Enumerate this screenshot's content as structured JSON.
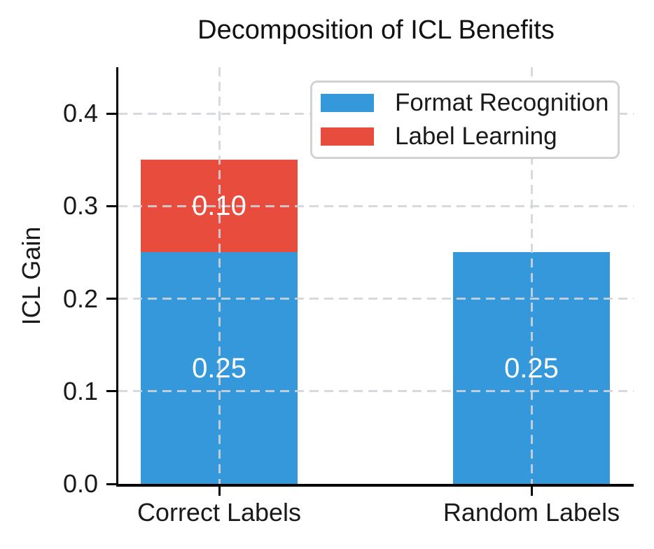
{
  "chart_data": {
    "type": "bar",
    "stacked": true,
    "title": "Decomposition of ICL Benefits",
    "ylabel": "ICL Gain",
    "xlabel": "",
    "categories": [
      "Correct Labels",
      "Random Labels"
    ],
    "series": [
      {
        "name": "Format Recognition",
        "color": "#3498db",
        "values": [
          0.25,
          0.25
        ]
      },
      {
        "name": "Label Learning",
        "color": "#e74c3c",
        "values": [
          0.1,
          0.0
        ]
      }
    ],
    "bar_value_labels": [
      [
        "0.25",
        "0.10"
      ],
      [
        "0.25"
      ]
    ],
    "ylim": [
      0,
      0.45
    ],
    "yticks": [
      0.0,
      0.1,
      0.2,
      0.3,
      0.4
    ],
    "grid": true,
    "grid_style": "dashed",
    "legend_position": "upper right",
    "colors": {
      "axis": "#000000",
      "text": "#1a1a1a",
      "grid": "#d0d5da",
      "bar_label_text": "#ffffff",
      "legend_border": "#d2d2d2"
    }
  }
}
